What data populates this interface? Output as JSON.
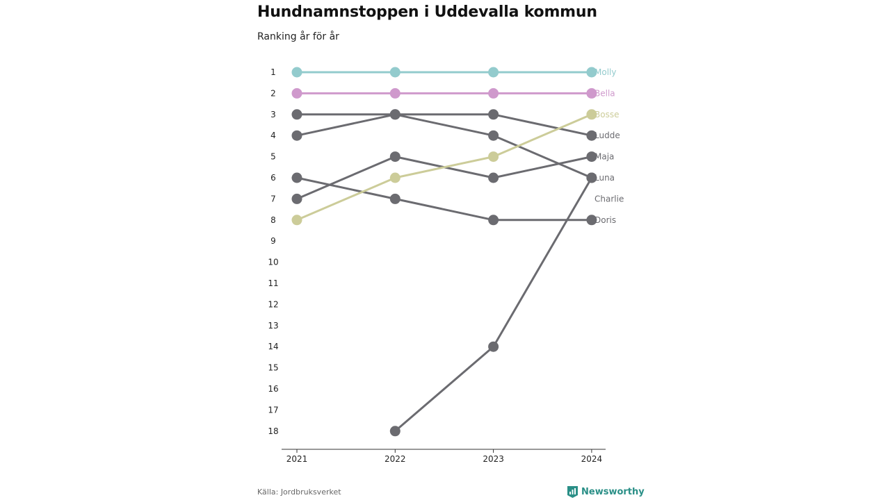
{
  "header": {
    "title": "Hundnamnstoppen i Uddevalla kommun",
    "subtitle": "Ranking år för år"
  },
  "footer": {
    "source": "Källa: Jordbruksverket",
    "brand": "Newsworthy"
  },
  "colors": {
    "teal": "#93cbcd",
    "violet": "#cf99cc",
    "olive": "#cccc99",
    "gray": "#6b6b70",
    "brand": "#2a8f87"
  },
  "chart_data": {
    "type": "line",
    "x": [
      "2021",
      "2022",
      "2023",
      "2024"
    ],
    "y_ticks": [
      "1",
      "2",
      "3",
      "4",
      "5",
      "6",
      "7",
      "8",
      "9",
      "10",
      "11",
      "12",
      "13",
      "14",
      "15",
      "16",
      "17",
      "18"
    ],
    "ylim": [
      1,
      18
    ],
    "y_reversed": true,
    "series": [
      {
        "name": "Molly",
        "values": [
          1,
          1,
          1,
          1
        ],
        "color": "#93cbcd"
      },
      {
        "name": "Bella",
        "values": [
          2,
          2,
          2,
          2
        ],
        "color": "#cf99cc"
      },
      {
        "name": "Bosse",
        "values": [
          8,
          6,
          5,
          3
        ],
        "color": "#cccc99"
      },
      {
        "name": "Ludde",
        "values": [
          3,
          3,
          3,
          4
        ],
        "color": "#6b6b70"
      },
      {
        "name": "Maja",
        "values": [
          7,
          5,
          6,
          5
        ],
        "color": "#6b6b70"
      },
      {
        "name": "Luna",
        "values": [
          4,
          3,
          4,
          6
        ],
        "color": "#6b6b70"
      },
      {
        "name": "Charlie",
        "values": [
          null,
          18,
          14,
          6
        ],
        "color": "#6b6b70"
      },
      {
        "name": "Doris",
        "values": [
          6,
          7,
          8,
          8
        ],
        "color": "#6b6b70"
      }
    ],
    "labels": [
      {
        "text": "Molly",
        "rank": 1,
        "color": "#93cbcd"
      },
      {
        "text": "Bella",
        "rank": 2,
        "color": "#cf99cc"
      },
      {
        "text": "Bosse",
        "rank": 3,
        "color": "#cccc99"
      },
      {
        "text": "Ludde",
        "rank": 4,
        "color": "#6b6b70"
      },
      {
        "text": "Maja",
        "rank": 5,
        "color": "#6b6b70"
      },
      {
        "text": "Luna",
        "rank": 6,
        "color": "#6b6b70"
      },
      {
        "text": "Charlie",
        "rank": 7,
        "color": "#6b6b70"
      },
      {
        "text": "Doris",
        "rank": 8,
        "color": "#6b6b70"
      }
    ]
  }
}
